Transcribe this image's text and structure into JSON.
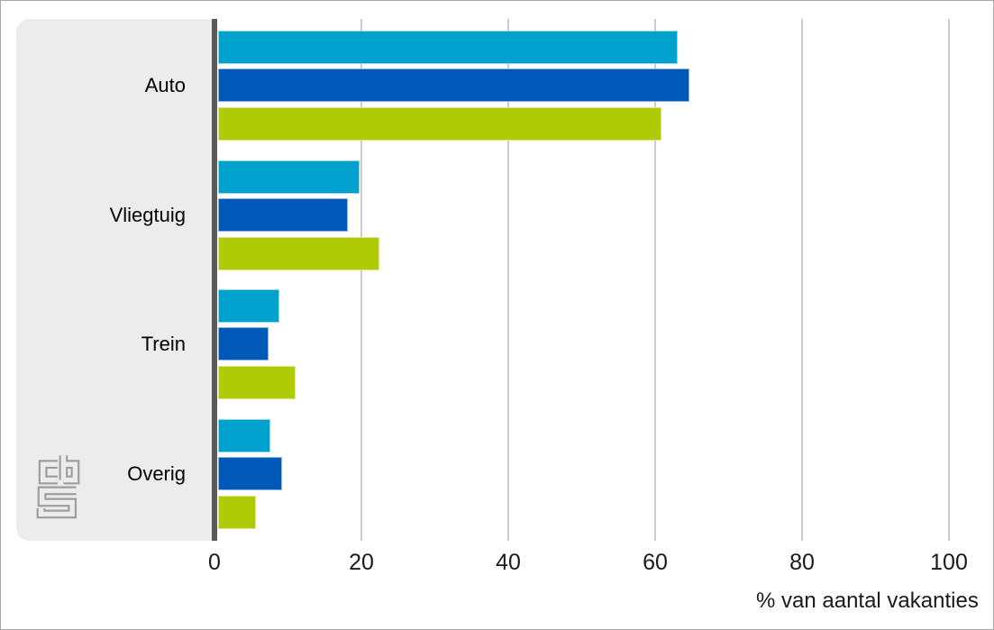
{
  "chart_data": {
    "type": "bar",
    "orientation": "horizontal",
    "title": "",
    "xlabel": "% van aantal vakanties",
    "ylabel": "",
    "xlim": [
      0,
      100
    ],
    "xticks": [
      0,
      20,
      40,
      60,
      80,
      100
    ],
    "grid": "vertical",
    "legend": "none",
    "categories": [
      "Auto",
      "Vliegtuig",
      "Trein",
      "Overig"
    ],
    "series": [
      {
        "name": "lichtblauw",
        "color": "#00a1cd",
        "values": [
          63.1,
          19.8,
          8.8,
          7.6
        ]
      },
      {
        "name": "donkerblauw",
        "color": "#0058b8",
        "values": [
          64.7,
          18.1,
          7.4,
          9.2
        ]
      },
      {
        "name": "groen",
        "color": "#afcb05",
        "values": [
          60.8,
          22.5,
          11.0,
          5.6
        ]
      }
    ]
  },
  "branding": {
    "logo_name": "cbs-logo"
  },
  "colors": {
    "panel_background": "#ececec",
    "axis_line": "#58585a",
    "gridline": "#cccccc",
    "frame_border": "#a8a8a8",
    "logo_gray": "#9d9d9d",
    "bar_lichtblauw": "#00a1cd",
    "bar_donkerblauw": "#0058b8",
    "bar_groen": "#afcb05"
  }
}
